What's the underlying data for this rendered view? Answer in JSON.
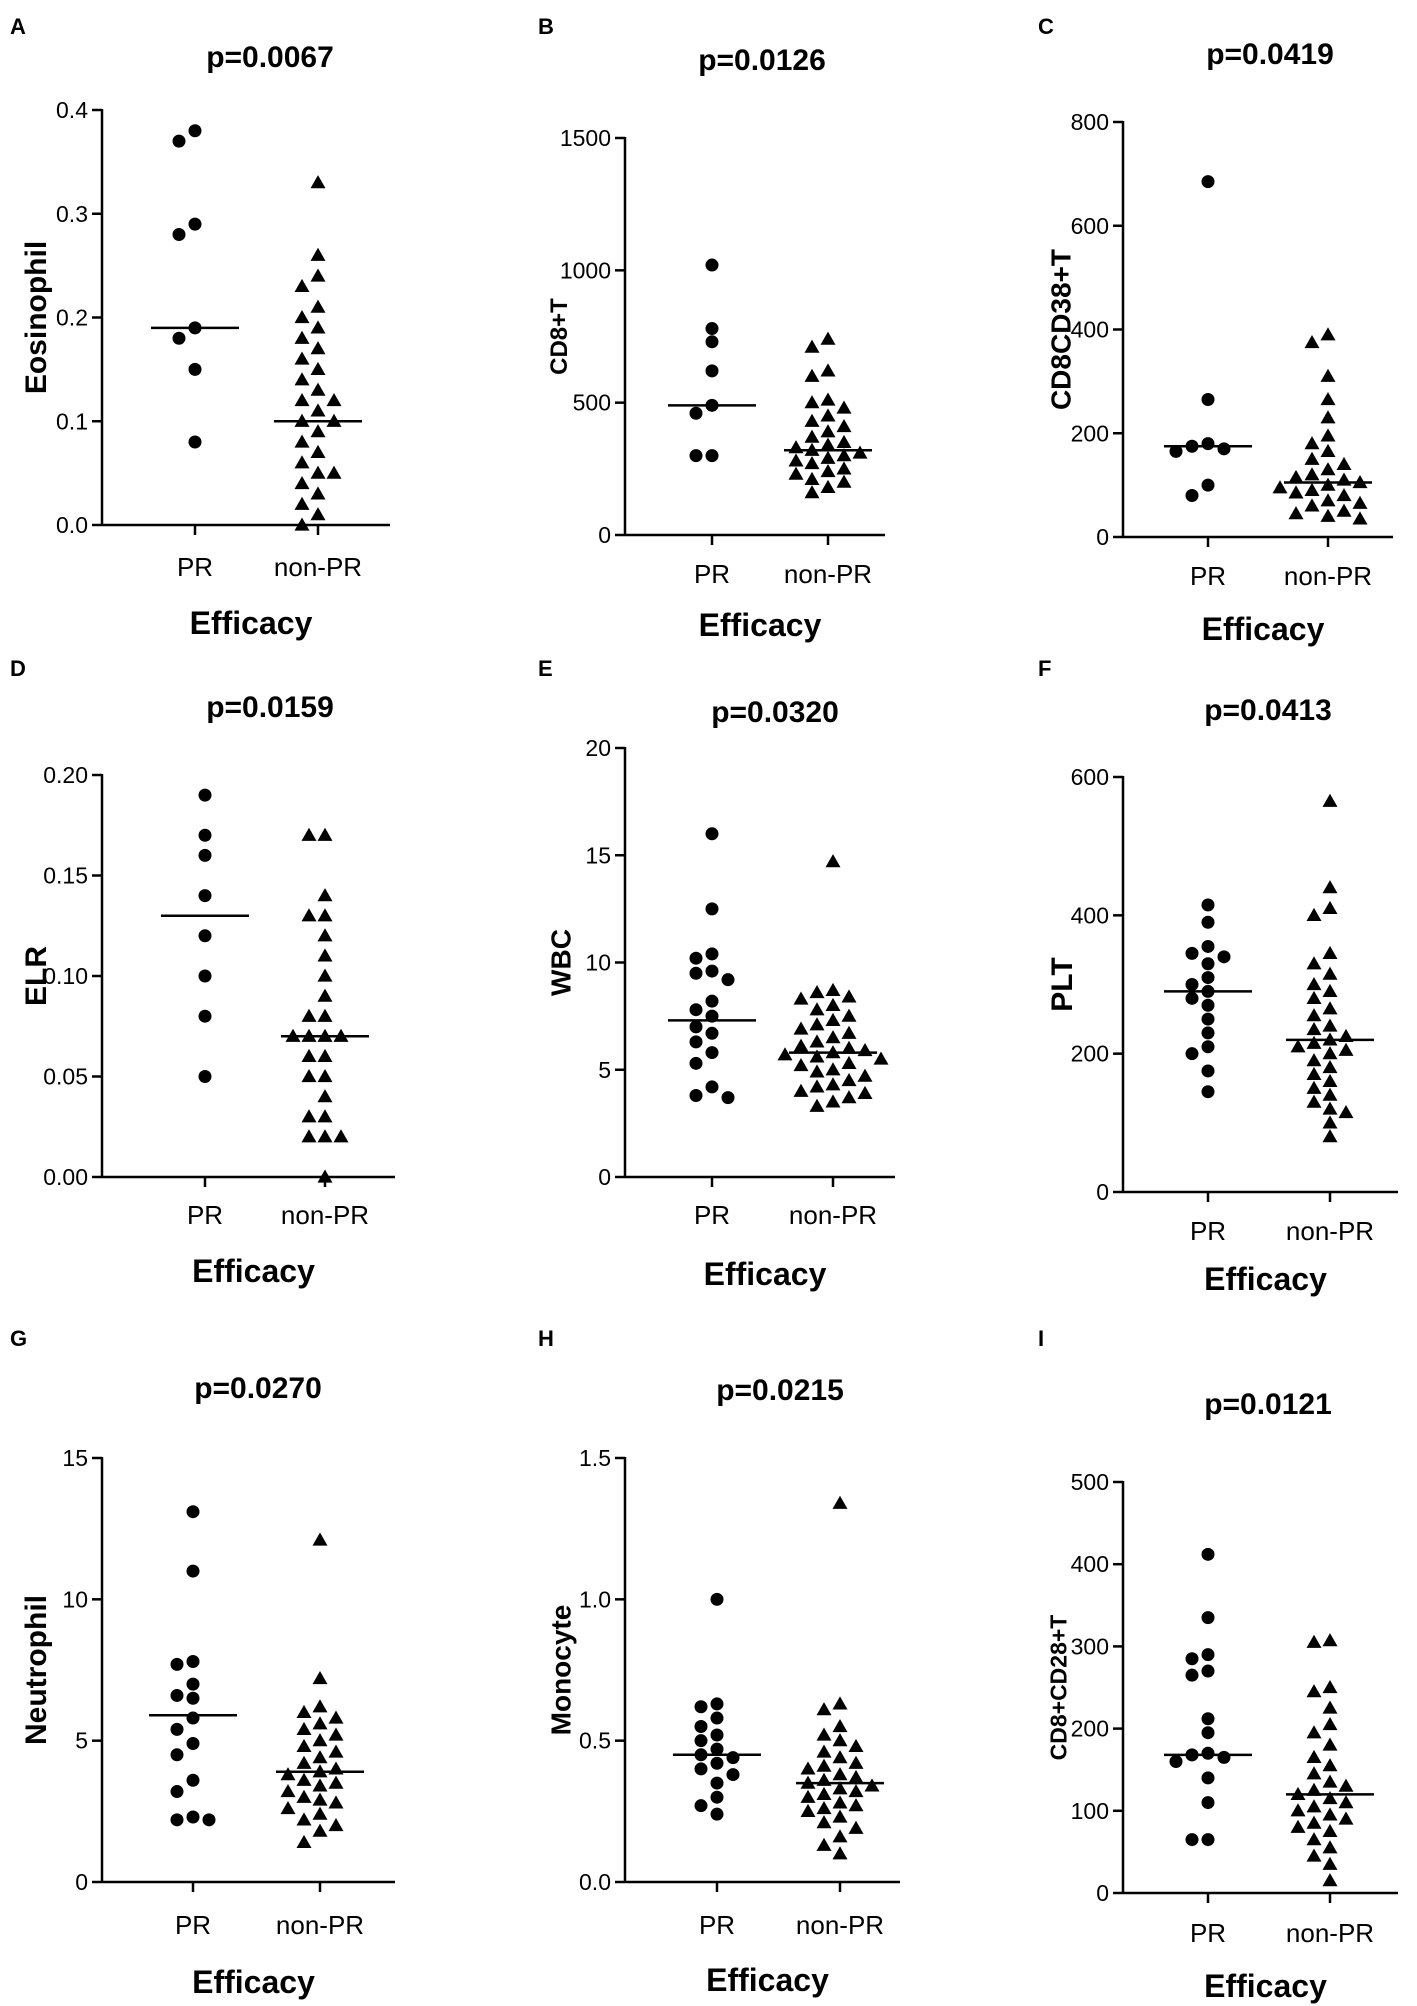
{
  "figure": {
    "background": "#ffffff",
    "ink": "#000000"
  },
  "chart_data": [
    {
      "panel": "A",
      "type": "scatter",
      "title": "p=0.0067",
      "ylabel": "Eosinophil",
      "xlabel": "Efficacy",
      "categories": [
        "PR",
        "non-PR"
      ],
      "ylim": [
        0,
        0.4
      ],
      "yticks": [
        "0.0",
        "0.1",
        "0.2",
        "0.3",
        "0.4"
      ],
      "series": [
        {
          "name": "PR",
          "marker": "circle",
          "median": 0.19,
          "points": [
            0.38,
            0.37,
            0.29,
            0.28,
            0.19,
            0.18,
            0.15,
            0.08
          ]
        },
        {
          "name": "non-PR",
          "marker": "triangle",
          "median": 0.1,
          "points": [
            0.33,
            0.26,
            0.24,
            0.23,
            0.21,
            0.2,
            0.19,
            0.18,
            0.17,
            0.16,
            0.15,
            0.14,
            0.13,
            0.12,
            0.12,
            0.11,
            0.1,
            0.1,
            0.09,
            0.08,
            0.07,
            0.06,
            0.05,
            0.05,
            0.04,
            0.03,
            0.02,
            0.01,
            0.0
          ]
        }
      ]
    },
    {
      "panel": "B",
      "type": "scatter",
      "title": "p=0.0126",
      "ylabel": "CD8+T",
      "xlabel": "Efficacy",
      "categories": [
        "PR",
        "non-PR"
      ],
      "ylim": [
        0,
        1500
      ],
      "yticks": [
        "0",
        "500",
        "1000",
        "1500"
      ],
      "series": [
        {
          "name": "PR",
          "marker": "circle",
          "median": 490,
          "points": [
            1020,
            780,
            730,
            620,
            490,
            460,
            300,
            300
          ]
        },
        {
          "name": "non-PR",
          "marker": "triangle",
          "median": 320,
          "points": [
            740,
            710,
            620,
            600,
            510,
            500,
            480,
            450,
            430,
            410,
            390,
            370,
            350,
            340,
            330,
            320,
            310,
            300,
            290,
            280,
            270,
            250,
            240,
            230,
            210,
            200,
            180,
            160
          ]
        }
      ]
    },
    {
      "panel": "C",
      "type": "scatter",
      "title": "p=0.0419",
      "ylabel": "CD8CD38+T",
      "xlabel": "Efficacy",
      "categories": [
        "PR",
        "non-PR"
      ],
      "ylim": [
        0,
        800
      ],
      "yticks": [
        "0",
        "200",
        "400",
        "600",
        "800"
      ],
      "series": [
        {
          "name": "PR",
          "marker": "circle",
          "median": 175,
          "points": [
            685,
            265,
            180,
            175,
            170,
            165,
            100,
            80
          ]
        },
        {
          "name": "non-PR",
          "marker": "triangle",
          "median": 105,
          "points": [
            390,
            375,
            310,
            265,
            230,
            195,
            180,
            165,
            150,
            140,
            130,
            120,
            115,
            110,
            105,
            100,
            95,
            90,
            85,
            80,
            70,
            65,
            60,
            50,
            45,
            40,
            35
          ]
        }
      ]
    },
    {
      "panel": "D",
      "type": "scatter",
      "title": "p=0.0159",
      "ylabel": "ELR",
      "xlabel": "Efficacy",
      "categories": [
        "PR",
        "non-PR"
      ],
      "ylim": [
        0,
        0.2
      ],
      "yticks": [
        "0.00",
        "0.05",
        "0.10",
        "0.15",
        "0.20"
      ],
      "series": [
        {
          "name": "PR",
          "marker": "circle",
          "median": 0.13,
          "points": [
            0.19,
            0.17,
            0.16,
            0.14,
            0.12,
            0.1,
            0.08,
            0.05
          ]
        },
        {
          "name": "non-PR",
          "marker": "triangle",
          "median": 0.07,
          "points": [
            0.17,
            0.17,
            0.14,
            0.13,
            0.13,
            0.12,
            0.11,
            0.1,
            0.09,
            0.08,
            0.08,
            0.07,
            0.07,
            0.07,
            0.07,
            0.06,
            0.06,
            0.05,
            0.05,
            0.04,
            0.03,
            0.03,
            0.02,
            0.02,
            0.02,
            0.0
          ]
        }
      ]
    },
    {
      "panel": "E",
      "type": "scatter",
      "title": "p=0.0320",
      "ylabel": "WBC",
      "xlabel": "Efficacy",
      "categories": [
        "PR",
        "non-PR"
      ],
      "ylim": [
        0,
        20
      ],
      "yticks": [
        "0",
        "5",
        "10",
        "15",
        "20"
      ],
      "series": [
        {
          "name": "PR",
          "marker": "circle",
          "median": 7.3,
          "points": [
            16.0,
            12.5,
            10.4,
            10.2,
            9.6,
            9.5,
            9.2,
            8.2,
            7.8,
            7.5,
            7.0,
            6.7,
            6.3,
            5.8,
            5.3,
            4.2,
            3.8,
            3.7
          ]
        },
        {
          "name": "non-PR",
          "marker": "triangle",
          "median": 5.8,
          "points": [
            14.7,
            8.7,
            8.6,
            8.4,
            8.3,
            8.0,
            7.8,
            7.5,
            7.3,
            7.1,
            6.9,
            6.7,
            6.5,
            6.3,
            6.1,
            6.0,
            5.9,
            5.8,
            5.7,
            5.6,
            5.5,
            5.3,
            5.2,
            5.0,
            4.9,
            4.7,
            4.5,
            4.3,
            4.2,
            4.0,
            3.9,
            3.7,
            3.5,
            3.3
          ]
        }
      ]
    },
    {
      "panel": "F",
      "type": "scatter",
      "title": "p=0.0413",
      "ylabel": "PLT",
      "xlabel": "Efficacy",
      "categories": [
        "PR",
        "non-PR"
      ],
      "ylim": [
        0,
        600
      ],
      "yticks": [
        "0",
        "200",
        "400",
        "600"
      ],
      "series": [
        {
          "name": "PR",
          "marker": "circle",
          "median": 290,
          "points": [
            415,
            390,
            355,
            345,
            340,
            330,
            310,
            300,
            290,
            280,
            270,
            250,
            230,
            210,
            200,
            175,
            145
          ]
        },
        {
          "name": "non-PR",
          "marker": "triangle",
          "median": 220,
          "points": [
            565,
            440,
            410,
            400,
            345,
            330,
            315,
            300,
            290,
            280,
            265,
            255,
            240,
            235,
            225,
            220,
            215,
            210,
            205,
            200,
            190,
            180,
            170,
            160,
            150,
            140,
            130,
            120,
            115,
            100,
            80
          ]
        }
      ]
    },
    {
      "panel": "G",
      "type": "scatter",
      "title": "p=0.0270",
      "ylabel": "Neutrophil",
      "xlabel": "Efficacy",
      "categories": [
        "PR",
        "non-PR"
      ],
      "ylim": [
        0,
        15
      ],
      "yticks": [
        "0",
        "5",
        "10",
        "15"
      ],
      "series": [
        {
          "name": "PR",
          "marker": "circle",
          "median": 5.9,
          "points": [
            13.1,
            11.0,
            7.8,
            7.7,
            7.0,
            6.6,
            6.5,
            5.8,
            5.4,
            4.9,
            4.5,
            3.6,
            3.2,
            2.3,
            2.2,
            2.2
          ]
        },
        {
          "name": "non-PR",
          "marker": "triangle",
          "median": 3.9,
          "points": [
            12.1,
            7.2,
            6.2,
            6.0,
            5.8,
            5.6,
            5.4,
            5.2,
            5.0,
            4.8,
            4.6,
            4.4,
            4.2,
            4.0,
            3.9,
            3.8,
            3.6,
            3.5,
            3.4,
            3.2,
            3.0,
            2.9,
            2.8,
            2.6,
            2.4,
            2.2,
            2.0,
            1.8,
            1.4
          ]
        }
      ]
    },
    {
      "panel": "H",
      "type": "scatter",
      "title": "p=0.0215",
      "ylabel": "Monocyte",
      "xlabel": "Efficacy",
      "categories": [
        "PR",
        "non-PR"
      ],
      "ylim": [
        0,
        1.5
      ],
      "yticks": [
        "0.0",
        "0.5",
        "1.0",
        "1.5"
      ],
      "series": [
        {
          "name": "PR",
          "marker": "circle",
          "median": 0.45,
          "points": [
            1.0,
            0.63,
            0.62,
            0.58,
            0.55,
            0.52,
            0.5,
            0.47,
            0.45,
            0.44,
            0.42,
            0.4,
            0.38,
            0.35,
            0.3,
            0.27,
            0.24
          ]
        },
        {
          "name": "non-PR",
          "marker": "triangle",
          "median": 0.35,
          "points": [
            1.34,
            0.63,
            0.61,
            0.55,
            0.52,
            0.5,
            0.48,
            0.46,
            0.44,
            0.42,
            0.41,
            0.4,
            0.38,
            0.37,
            0.36,
            0.35,
            0.34,
            0.33,
            0.32,
            0.31,
            0.3,
            0.28,
            0.27,
            0.26,
            0.25,
            0.23,
            0.21,
            0.19,
            0.16,
            0.13,
            0.1
          ]
        }
      ]
    },
    {
      "panel": "I",
      "type": "scatter",
      "title": "p=0.0121",
      "ylabel": "CD8+CD28+T",
      "xlabel": "Efficacy",
      "categories": [
        "PR",
        "non-PR"
      ],
      "ylim": [
        0,
        500
      ],
      "yticks": [
        "0",
        "100",
        "200",
        "300",
        "400",
        "500"
      ],
      "series": [
        {
          "name": "PR",
          "marker": "circle",
          "median": 168,
          "points": [
            412,
            335,
            290,
            285,
            270,
            265,
            212,
            195,
            170,
            168,
            165,
            160,
            140,
            110,
            65,
            65
          ]
        },
        {
          "name": "non-PR",
          "marker": "triangle",
          "median": 120,
          "points": [
            307,
            305,
            250,
            245,
            225,
            205,
            195,
            180,
            165,
            155,
            145,
            135,
            130,
            125,
            120,
            115,
            110,
            105,
            100,
            95,
            90,
            85,
            80,
            75,
            65,
            55,
            45,
            35,
            15
          ]
        }
      ]
    }
  ]
}
